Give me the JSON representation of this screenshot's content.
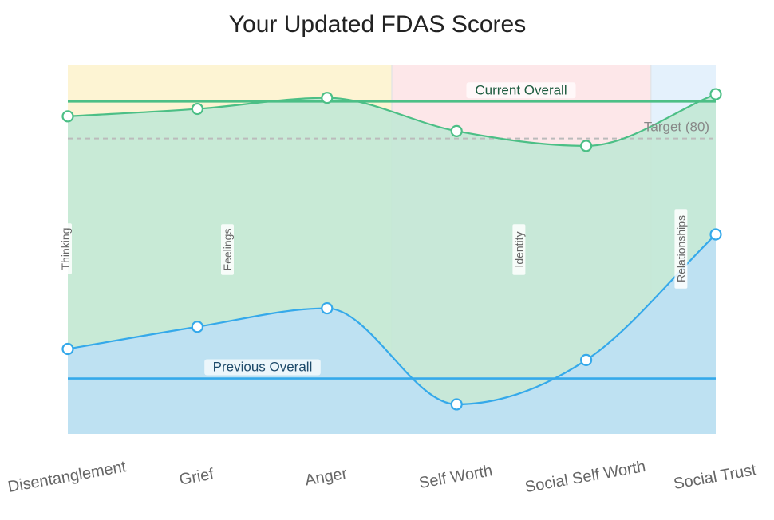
{
  "chart_data": {
    "type": "line",
    "title": "Your Updated FDAS Scores",
    "categories": [
      "Disentanglement",
      "Grief",
      "Anger",
      "Self Worth",
      "Social Self Worth",
      "Social Trust"
    ],
    "series": [
      {
        "key": "current",
        "values": [
          86,
          88,
          91,
          82,
          78,
          92
        ],
        "line_color": "#4cbf86",
        "fill_color": "#c3e8d6"
      },
      {
        "key": "previous",
        "values": [
          23,
          29,
          34,
          8,
          20,
          54
        ],
        "line_color": "#35a9ea",
        "fill_color": "#bde0f4"
      }
    ],
    "ylim": [
      0,
      100
    ],
    "axes_visible": false,
    "grid": false,
    "bands": [
      {
        "label": "Thinking",
        "from": -0.5,
        "to": 0,
        "color": "#e6f6ee"
      },
      {
        "label": "Feelings",
        "from": 0,
        "to": 2.5,
        "color": "#fdf4d3"
      },
      {
        "label": "Identity",
        "from": 2.5,
        "to": 4.5,
        "color": "#fde7e9"
      },
      {
        "label": "Relationships",
        "from": 4.5,
        "to": 5,
        "color": "#e4f1fc"
      }
    ],
    "reference_lines": [
      {
        "label": "Current Overall",
        "value": 90,
        "color": "#4cbf86",
        "label_color": "#1f5c40",
        "style": "solid"
      },
      {
        "label": "Target (80)",
        "value": 80,
        "color": "#bbbbbb",
        "label_color": "#888888",
        "style": "dashed"
      },
      {
        "label": "Previous Overall",
        "value": 15,
        "color": "#35a9ea",
        "label_color": "#1d4a6a",
        "style": "solid"
      }
    ]
  }
}
